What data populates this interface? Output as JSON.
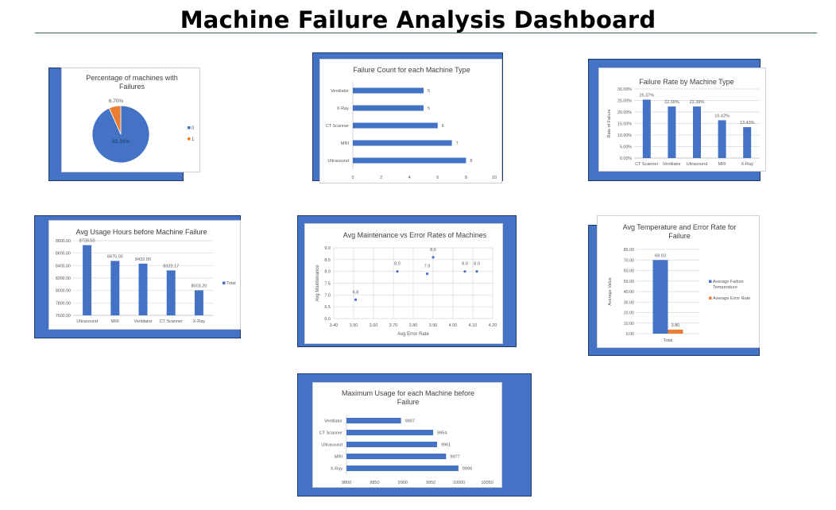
{
  "dashboard": {
    "title": "Machine Failure Analysis Dashboard"
  },
  "colors": {
    "blue": "#4472c4",
    "orange": "#ed7d31",
    "panel_border": "#1f3864",
    "grid": "#d9d9d9",
    "text": "#595959"
  },
  "chart_data": [
    {
      "id": "pie",
      "type": "pie",
      "title": [
        "Percentage of machines with",
        "Failures"
      ],
      "categories": [
        "0",
        "1"
      ],
      "values": [
        93.3,
        6.7
      ],
      "data_labels": [
        "93.30%",
        "6.70%"
      ],
      "colors": [
        "#4472c4",
        "#ed7d31"
      ],
      "legend": "right"
    },
    {
      "id": "count",
      "type": "bar",
      "orientation": "horizontal",
      "title": [
        "Failure Count for each Machine Type"
      ],
      "categories": [
        "Ventilator",
        "X-Ray",
        "CT Scanner",
        "MRI",
        "Ultrasound"
      ],
      "values": [
        5,
        5,
        6,
        7,
        8
      ],
      "data_labels": [
        "5",
        "5",
        "6",
        "7",
        "8"
      ],
      "xlim": [
        0,
        10
      ],
      "ticks": [
        "0",
        "2",
        "4",
        "6",
        "8",
        "10"
      ],
      "grid": false
    },
    {
      "id": "rate",
      "type": "bar",
      "title": [
        "Failure Rate by Machine Type"
      ],
      "ylabel": "Rate of Failure",
      "categories": [
        "CT Scanner",
        "Ventilator",
        "Ultrasound",
        "MRI",
        "X-Ray"
      ],
      "values": [
        25.37,
        22.39,
        22.39,
        16.42,
        13.43
      ],
      "data_labels": [
        "25.37%",
        "22.39%",
        "22.39%",
        "16.42%",
        "13.43%"
      ],
      "ylim": [
        0,
        30
      ],
      "ticks": [
        "0.00%",
        "5.00%",
        "10.00%",
        "15.00%",
        "20.00%",
        "25.00%",
        "30.00%"
      ],
      "grid": true
    },
    {
      "id": "hours",
      "type": "bar",
      "title": [
        "Avg Usage Hours before Machine Failure"
      ],
      "categories": [
        "Ultrasound",
        "MRI",
        "Ventilator",
        "CT Scanner",
        "X-Ray"
      ],
      "values": [
        8728.5,
        8475.0,
        8432.0,
        8323.17,
        8003.2
      ],
      "data_labels": [
        "8728.50",
        "8475.00",
        "8432.00",
        "8323.17",
        "8003.20"
      ],
      "ylim": [
        7600,
        8800
      ],
      "ticks": [
        "7600.00",
        "7800.00",
        "8000.00",
        "8200.00",
        "8400.00",
        "8600.00",
        "8800.00"
      ],
      "legend": "right",
      "legend_entries": [
        "Total"
      ],
      "grid": true
    },
    {
      "id": "scatter",
      "type": "scatter",
      "title": [
        "Avg Maintenance vs Error Rates of Machines"
      ],
      "xlabel": "Avg Error Rate",
      "ylabel": "Avg Maintenance",
      "points": [
        {
          "x": 3.51,
          "y": 6.8,
          "label": "6.8"
        },
        {
          "x": 3.72,
          "y": 8.0,
          "label": "8.0"
        },
        {
          "x": 3.87,
          "y": 7.9,
          "label": "7.9"
        },
        {
          "x": 3.9,
          "y": 8.6,
          "label": "8.6"
        },
        {
          "x": 4.06,
          "y": 8.0,
          "label": "8.0"
        },
        {
          "x": 4.12,
          "y": 8.0,
          "label": "8.0"
        }
      ],
      "xlim": [
        3.4,
        4.2
      ],
      "ylim": [
        6.0,
        9.0
      ],
      "xticks": [
        "3.40",
        "3.50",
        "3.60",
        "3.70",
        "3.80",
        "3.90",
        "4.00",
        "4.10",
        "4.20"
      ],
      "yticks": [
        "6.0",
        "6.5",
        "7.0",
        "7.5",
        "8.0",
        "8.5",
        "9.0"
      ],
      "grid": true
    },
    {
      "id": "temp",
      "type": "bar",
      "title": [
        "Avg Temperature and Error Rate for",
        "Failure"
      ],
      "ylabel": "Average Value",
      "categories": [
        "Total"
      ],
      "series": [
        {
          "name": "Average Failure Temperature",
          "legend_lines": [
            "Average Failure",
            "Temperature"
          ],
          "values": [
            69.93
          ],
          "label": "69.93",
          "color": "#4472c4"
        },
        {
          "name": "Average Error Rate",
          "legend_lines": [
            "Average Error Rate"
          ],
          "values": [
            3.8
          ],
          "label": "3.80",
          "color": "#ed7d31"
        }
      ],
      "ylim": [
        0,
        80
      ],
      "ticks": [
        "0.00",
        "10.00",
        "20.00",
        "30.00",
        "40.00",
        "50.00",
        "60.00",
        "70.00",
        "80.00"
      ],
      "legend": "right",
      "grid": true
    },
    {
      "id": "maxusage",
      "type": "bar",
      "orientation": "horizontal",
      "title": [
        "Maximum Usage for each Machine before",
        "Failure"
      ],
      "categories": [
        "Ventilator",
        "CT Scanner",
        "Ultrasound",
        "MRI",
        "X-Ray"
      ],
      "values": [
        9897,
        9954,
        9961,
        9977,
        9999
      ],
      "data_labels": [
        "9897",
        "9954",
        "9961",
        "9977",
        "9999"
      ],
      "xlim": [
        9800,
        10050
      ],
      "ticks": [
        "9800",
        "9850",
        "9900",
        "9950",
        "10000",
        "10050"
      ],
      "grid": false
    }
  ]
}
